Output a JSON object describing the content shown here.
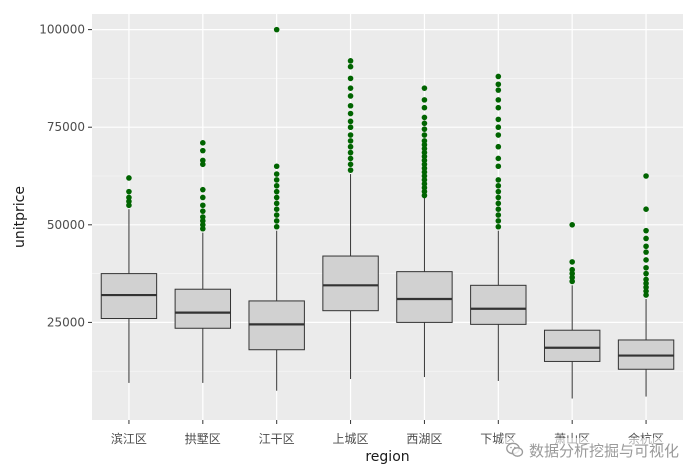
{
  "chart_data": {
    "type": "boxplot",
    "xlabel": "region",
    "ylabel": "unitprice",
    "ylim": [
      0,
      104000
    ],
    "yticks": [
      25000,
      50000,
      75000,
      100000
    ],
    "categories": [
      "滨江区",
      "拱墅区",
      "江干区",
      "上城区",
      "西湖区",
      "下城区",
      "萧山区",
      "余杭区"
    ],
    "boxes": [
      {
        "min": 9500,
        "q1": 26000,
        "median": 32000,
        "q3": 37500,
        "max": 54000,
        "outliers": [
          55000,
          56000,
          57000,
          58500,
          62000
        ]
      },
      {
        "min": 9500,
        "q1": 23500,
        "median": 27500,
        "q3": 33500,
        "max": 48000,
        "outliers": [
          49000,
          50000,
          51000,
          52000,
          53500,
          55000,
          57000,
          59000,
          65500,
          66500,
          69000,
          71000
        ]
      },
      {
        "min": 7500,
        "q1": 18000,
        "median": 24500,
        "q3": 30500,
        "max": 48500,
        "outliers": [
          49500,
          51000,
          52500,
          54000,
          55500,
          57000,
          58500,
          60000,
          61500,
          63000,
          65000,
          100000
        ]
      },
      {
        "min": 10500,
        "q1": 28000,
        "median": 34500,
        "q3": 42000,
        "max": 63000,
        "outliers": [
          64000,
          65500,
          67000,
          68500,
          70000,
          71500,
          73000,
          75000,
          76500,
          78500,
          80500,
          83000,
          85000,
          87500,
          90500,
          92000
        ]
      },
      {
        "min": 11000,
        "q1": 25000,
        "median": 31000,
        "q3": 38000,
        "max": 57000,
        "outliers": [
          57500,
          58500,
          59500,
          60500,
          61500,
          62500,
          63500,
          64500,
          65500,
          66500,
          67500,
          68500,
          69500,
          70500,
          71500,
          73000,
          74500,
          76000,
          77500,
          80000,
          82000,
          85000
        ]
      },
      {
        "min": 10000,
        "q1": 24500,
        "median": 28500,
        "q3": 34500,
        "max": 48500,
        "outliers": [
          49500,
          51000,
          52500,
          54000,
          55500,
          57000,
          58500,
          60000,
          61500,
          65000,
          67000,
          70000,
          73000,
          75000,
          77000,
          80000,
          82000,
          84500,
          86000,
          88000
        ]
      },
      {
        "min": 5500,
        "q1": 15000,
        "median": 18500,
        "q3": 23000,
        "max": 34500,
        "outliers": [
          35500,
          36500,
          37500,
          38500,
          40500,
          50000
        ]
      },
      {
        "min": 6000,
        "q1": 13000,
        "median": 16500,
        "q3": 20500,
        "max": 31000,
        "outliers": [
          32000,
          33000,
          34000,
          35000,
          36000,
          37500,
          39000,
          41000,
          43000,
          44500,
          46500,
          48500,
          54000,
          62500
        ]
      }
    ],
    "colors": {
      "panel": "#ebebeb",
      "grid_major": "#ffffff",
      "box_fill": "#d1d1d1",
      "box_line": "#333333",
      "outlier": "#006400"
    },
    "grid": true,
    "legend": "none"
  },
  "watermark": {
    "text": "数据分析挖掘与可视化",
    "icon": "wechat-icon"
  }
}
